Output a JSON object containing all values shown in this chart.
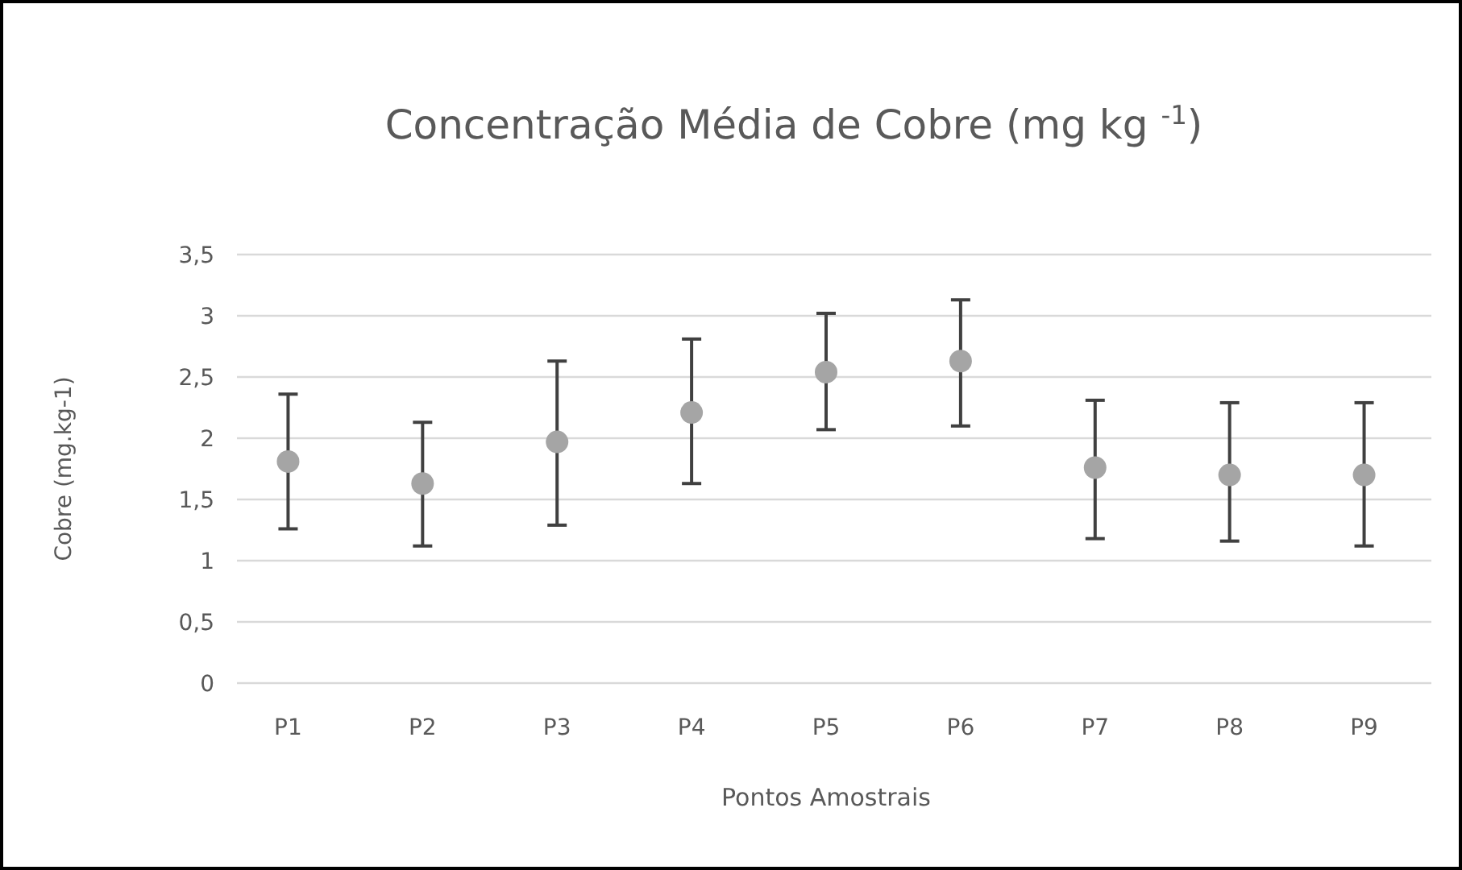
{
  "chart_data": {
    "type": "scatter",
    "title": "Concentração Média de Cobre (mg kg $^{-1}$)",
    "xlabel": "Pontos Amostrais",
    "ylabel": "Cobre (mg.kg-1)",
    "categories": [
      "P1",
      "P2",
      "P3",
      "P4",
      "P5",
      "P6",
      "P7",
      "P8",
      "P9"
    ],
    "values": [
      1.81,
      1.63,
      1.97,
      2.21,
      2.54,
      2.63,
      1.76,
      1.7,
      1.7
    ],
    "errors": [
      [
        1.26,
        2.36
      ],
      [
        1.12,
        2.13
      ],
      [
        1.29,
        2.63
      ],
      [
        1.63,
        2.81
      ],
      [
        2.07,
        3.02
      ],
      [
        2.1,
        3.13
      ],
      [
        1.18,
        2.31
      ],
      [
        1.16,
        2.29
      ],
      [
        1.12,
        2.29
      ]
    ],
    "color": "#a5a5a5",
    "marker": "circle",
    "grid": "y",
    "ylim": [
      0,
      3.5
    ],
    "yticks": [
      {
        "value": 0,
        "label": "0"
      },
      {
        "value": 0.5,
        "label": "0,5"
      },
      {
        "value": 1,
        "label": "1"
      },
      {
        "value": 1.5,
        "label": "1,5"
      },
      {
        "value": 2,
        "label": "2"
      },
      {
        "value": 2.5,
        "label": "2,5"
      },
      {
        "value": 3,
        "label": "3"
      },
      {
        "value": 3.5,
        "label": "3,5"
      }
    ]
  }
}
